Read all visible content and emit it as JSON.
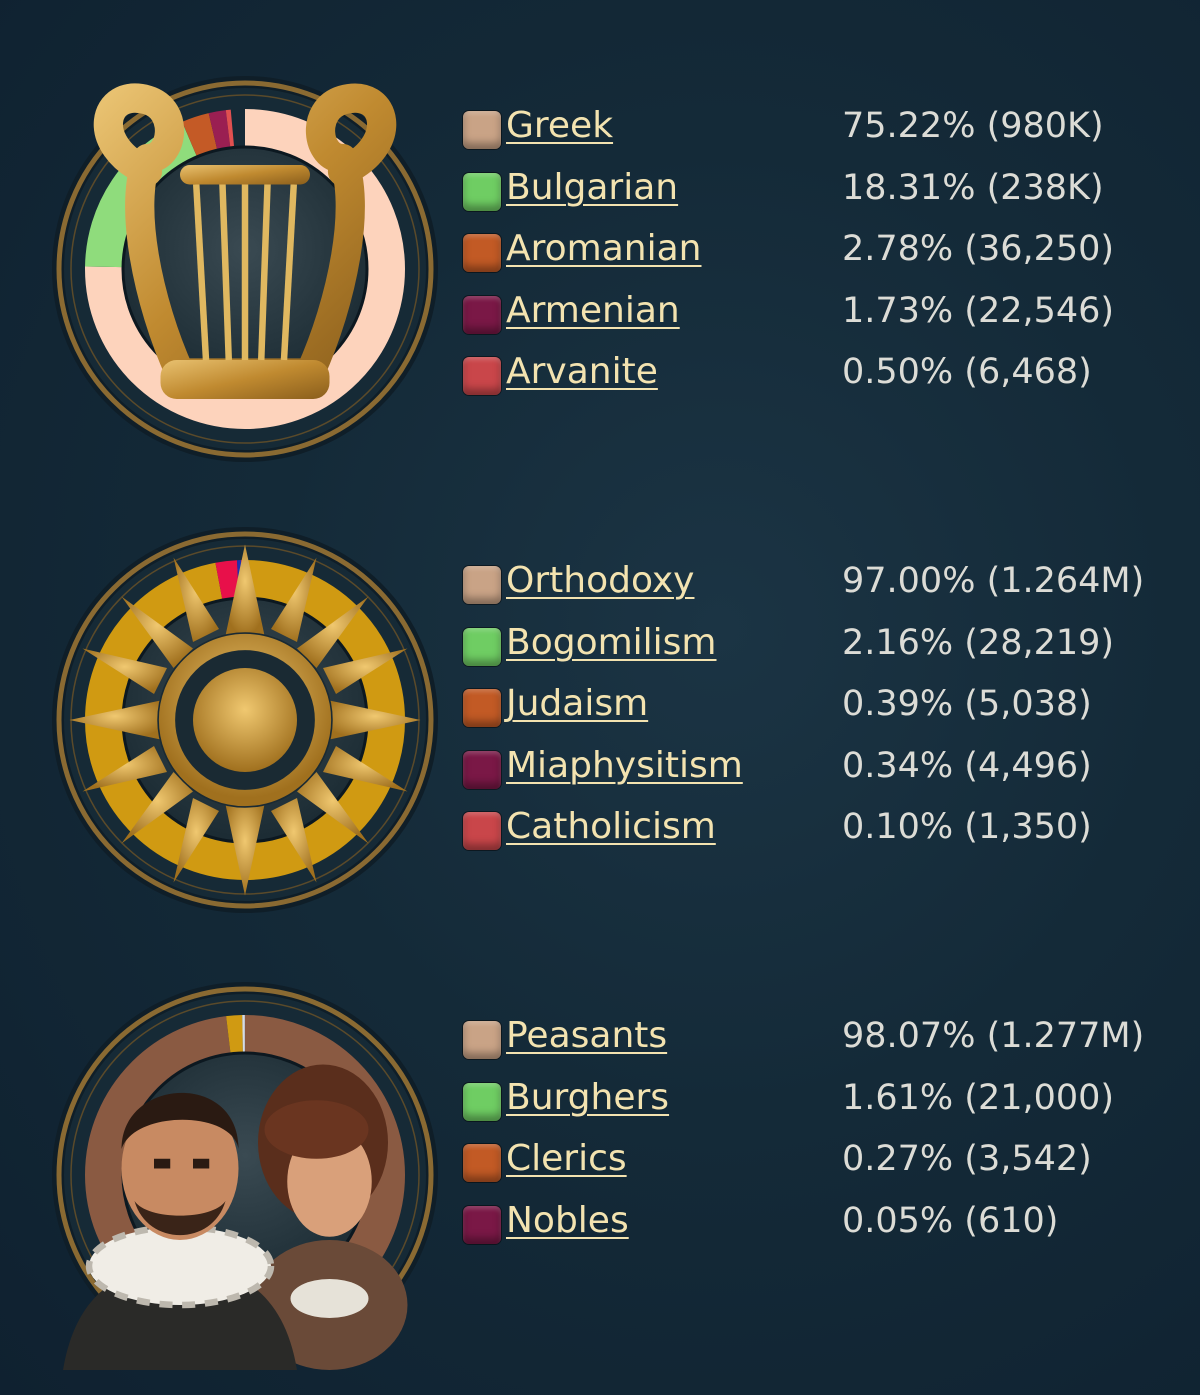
{
  "panels": [
    {
      "id": "culture",
      "icon": "lyre-icon",
      "rows": [
        {
          "label": "Greek",
          "value": "75.22% (980K)",
          "pct": 75.22,
          "color": "#c9a386"
        },
        {
          "label": "Bulgarian",
          "value": "18.31% (238K)",
          "pct": 18.31,
          "color": "#6fcd63"
        },
        {
          "label": "Aromanian",
          "value": "2.78% (36,250)",
          "pct": 2.78,
          "color": "#c25a25"
        },
        {
          "label": "Armenian",
          "value": "1.73% (22,546)",
          "pct": 1.73,
          "color": "#7a1846"
        },
        {
          "label": "Arvanite",
          "value": "0.50% (6,468)",
          "pct": 0.5,
          "color": "#c9464a"
        }
      ],
      "ring_colors": [
        "#fdd3bc",
        "#8fdc7c",
        "#c45a26",
        "#9a1f52",
        "#e05050"
      ]
    },
    {
      "id": "religion",
      "icon": "sun-icon",
      "rows": [
        {
          "label": "Orthodoxy",
          "value": "97.00% (1.264M)",
          "pct": 97.0,
          "color": "#a8750e"
        },
        {
          "label": "Bogomilism",
          "value": "2.16% (28,219)",
          "pct": 2.16,
          "color": "#e0103e"
        },
        {
          "label": "Judaism",
          "value": "0.39% (5,038)",
          "pct": 0.39,
          "color": "#1a2f9e"
        },
        {
          "label": "Miaphysitism",
          "value": "0.34% (4,496)",
          "pct": 0.34,
          "color": "#a6183e"
        },
        {
          "label": "Catholicism",
          "value": "0.10% (1,350)",
          "pct": 0.1,
          "color": "#c4b00a"
        }
      ],
      "ring_colors": [
        "#d09a12",
        "#e8104a",
        "#2030b0",
        "#b01848",
        "#d4c014"
      ]
    },
    {
      "id": "estates",
      "icon": "people-portrait-icon",
      "rows": [
        {
          "label": "Peasants",
          "value": "98.07% (1.277M)",
          "pct": 98.07,
          "color": "#6b4a3a"
        },
        {
          "label": "Burghers",
          "value": "1.61% (21,000)",
          "pct": 1.61,
          "color": "#b8860e"
        },
        {
          "label": "Clerics",
          "value": "0.27% (3,542)",
          "pct": 0.27,
          "color": "#b8c0c8"
        },
        {
          "label": "Nobles",
          "value": "0.05% (610)",
          "pct": 0.05,
          "color": "#3a5ab0"
        }
      ],
      "ring_colors": [
        "#8a5a42",
        "#d09a12",
        "#d8dce0",
        "#4a6ad0"
      ]
    }
  ]
}
